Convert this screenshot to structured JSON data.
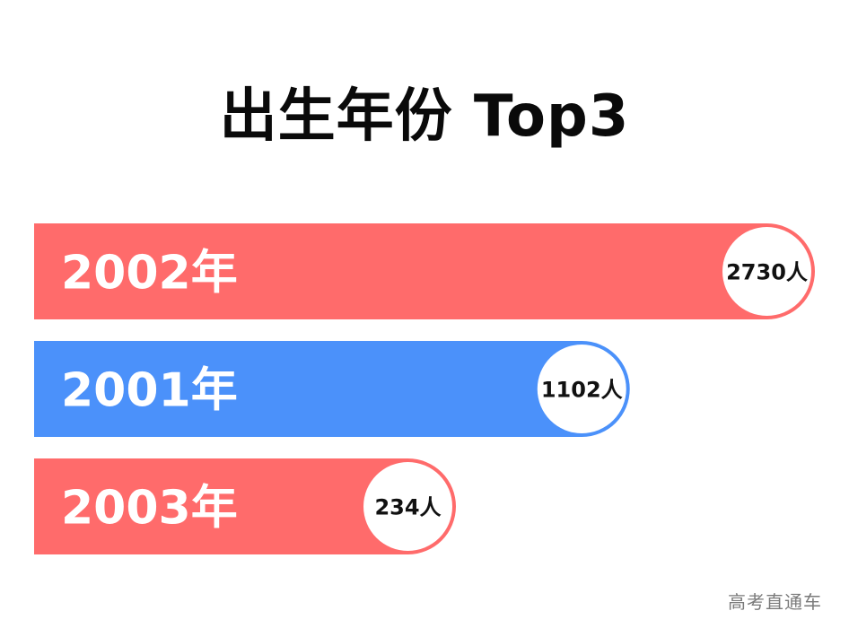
{
  "chart_data": {
    "type": "bar",
    "orientation": "horizontal",
    "title": "出生年份 Top3",
    "categories": [
      "2002年",
      "2001年",
      "2003年"
    ],
    "values": [
      2730,
      1102,
      234
    ],
    "value_labels": [
      "2730人",
      "1102人",
      "234人"
    ],
    "colors": [
      "#ff6b6b",
      "#4b91fa",
      "#ff6b6b"
    ],
    "grid": false,
    "legend": "none"
  },
  "watermark": "高考直通车"
}
